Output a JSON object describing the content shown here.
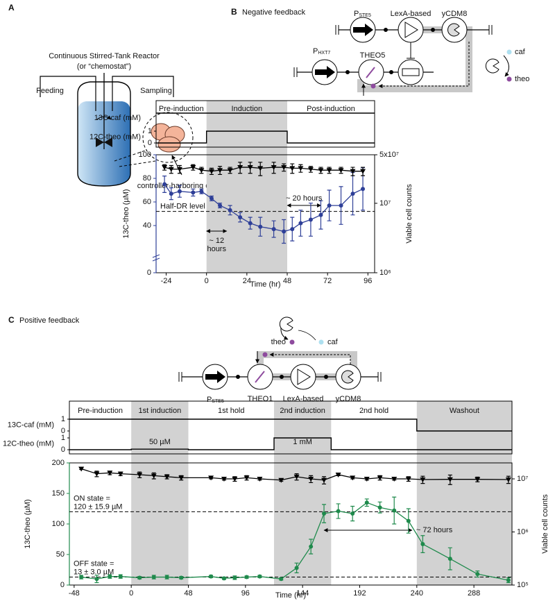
{
  "panel_a": {
    "label": "A",
    "title": "Continuous Stirred-Tank Reactor",
    "subtitle": "(or “chemostat”)",
    "feeding": "Feeding",
    "sampling": "Sampling",
    "cells": "controller-harboring cells"
  },
  "circuit_b": {
    "promoter_top": {
      "main": "P",
      "sub": "STE5"
    },
    "activator": "LexA-based",
    "degrader": "yCDM8",
    "promoter_bottom": {
      "main": "P",
      "sub": "HXT7"
    },
    "sensor": "THEO5",
    "caf": "caf",
    "theo": "theo"
  },
  "circuit_c": {
    "promoter": {
      "main": "P",
      "sub": "STE5"
    },
    "sensor": "THEO1",
    "activator": "LexA-based",
    "degrader": "yCDM8",
    "caf": "caf",
    "theo": "theo"
  },
  "chart_data": [
    {
      "type": "line",
      "panel_label": "B",
      "panel_title": "Negative feedback",
      "x_label": "Time (hr)",
      "y_label": "13C-theo (µM)",
      "y2_label": "Viable cell counts",
      "xlim": [
        -30,
        100
      ],
      "xticks": [
        -24,
        0,
        24,
        48,
        72,
        96
      ],
      "ylim": [
        0,
        100
      ],
      "yticks": [
        0,
        40,
        60,
        80,
        100
      ],
      "y_axis_break": true,
      "y2lim": [
        1000000,
        50000000
      ],
      "y2_log": true,
      "y2ticks": [
        {
          "value": 1000000,
          "label": "10⁶"
        },
        {
          "value": 10000000,
          "label": "10⁷"
        },
        {
          "value": 50000000,
          "label": "5x10⁷"
        }
      ],
      "x": [
        -25,
        -21,
        -16,
        -8,
        -3,
        3,
        8,
        14,
        20,
        26,
        32,
        40,
        46,
        51,
        56,
        62,
        68,
        73,
        80,
        87,
        93
      ],
      "series": [
        {
          "color": "#2e3f98",
          "marker": "circle",
          "values": [
            75,
            67,
            69,
            68,
            69,
            63,
            57,
            53,
            47,
            42,
            39,
            37,
            35,
            37,
            42,
            45,
            49,
            57,
            57,
            67,
            71
          ],
          "errors": [
            7,
            5,
            5,
            3,
            2,
            2,
            2,
            4,
            4,
            5,
            8,
            7,
            10,
            10,
            11,
            14,
            12,
            13,
            16,
            18,
            18
          ]
        },
        {
          "color": "#000000",
          "marker": "triangle",
          "axis": "y2",
          "values": [
            33000000,
            31000000,
            31000000,
            33000000,
            30000000,
            29000000,
            30000000,
            30000000,
            33000000,
            33000000,
            32000000,
            33000000,
            33000000,
            32000000,
            32000000,
            31000000,
            30000000,
            30000000,
            30000000,
            29000000,
            29000000
          ],
          "errors": [
            3000000,
            4000000,
            4000000,
            3000000,
            3000000,
            3000000,
            4000000,
            3000000,
            6000000,
            6000000,
            7000000,
            6000000,
            4000000,
            5000000,
            4000000,
            3000000,
            3000000,
            3000000,
            3000000,
            4000000,
            4000000
          ]
        }
      ],
      "phases": [
        {
          "label": "Pre-induction",
          "start": -30,
          "end": 0,
          "shaded": false
        },
        {
          "label": "Induction",
          "start": 0,
          "end": 48,
          "shaded": true
        },
        {
          "label": "Post-induction",
          "start": 48,
          "end": 100,
          "shaded": false
        }
      ],
      "inputs": [
        {
          "label": "13C-caf (mM)",
          "ylim": [
            0,
            1
          ],
          "x": [
            -30,
            100
          ],
          "values": [
            1,
            1
          ]
        },
        {
          "label": "12C-theo (mM)",
          "ylim": [
            0,
            1
          ],
          "yticks": [
            0,
            1
          ],
          "x": [
            -30,
            0,
            0,
            48,
            48,
            100
          ],
          "values": [
            0,
            0,
            1,
            1,
            0,
            0
          ]
        }
      ],
      "input_annotations": [],
      "hlines": [
        {
          "value": 52,
          "label": [
            "Half-DR level"
          ]
        }
      ],
      "arrows": [
        {
          "start": 0,
          "end": 12,
          "label": [
            "~ 12",
            "hours"
          ]
        },
        {
          "start": 48,
          "end": 68,
          "label": [
            "~ 20 hours"
          ]
        }
      ]
    },
    {
      "type": "line",
      "panel_label": "C",
      "panel_title": "Positive feedback",
      "x_label": "Time (hr)",
      "y_label": "13C-theo (µM)",
      "y2_label": "Viable cell counts",
      "xlim": [
        -52,
        320
      ],
      "xticks": [
        -48,
        0,
        48,
        96,
        144,
        192,
        240,
        288
      ],
      "ylim": [
        0,
        200
      ],
      "yticks": [
        0,
        50,
        100,
        150,
        200
      ],
      "y2lim": [
        100000,
        20000000
      ],
      "y2_log": true,
      "y2ticks": [
        {
          "value": 100000,
          "label": "10⁵"
        },
        {
          "value": 1000000,
          "label": "10⁶"
        },
        {
          "value": 10000000,
          "label": "10⁷"
        }
      ],
      "x": [
        -42,
        -29,
        -18,
        -9,
        7,
        19,
        30,
        42,
        67,
        78,
        87,
        97,
        108,
        126,
        139,
        151,
        162,
        174,
        186,
        198,
        209,
        221,
        233,
        245,
        268,
        291,
        317
      ],
      "series": [
        {
          "color": "#1f8a4c",
          "marker": "circle",
          "values": [
            13,
            10,
            14,
            14,
            12,
            13,
            13,
            12,
            14,
            11,
            12,
            13,
            14,
            10,
            28,
            63,
            117,
            121,
            117,
            135,
            127,
            122,
            105,
            67,
            43,
            18,
            8
          ],
          "errors": [
            3,
            6,
            3,
            3,
            2,
            3,
            3,
            2,
            2,
            2,
            3,
            2,
            2,
            2,
            8,
            12,
            15,
            12,
            12,
            6,
            9,
            22,
            20,
            14,
            18,
            5,
            4
          ]
        },
        {
          "color": "#000000",
          "marker": "triangle",
          "axis": "y2",
          "values": [
            15500000,
            12500000,
            13000000,
            12500000,
            12000000,
            11500000,
            11000000,
            10500000,
            10500000,
            10000000,
            10000000,
            10500000,
            10000000,
            9500000,
            11000000,
            10000000,
            9500000,
            12000000,
            10500000,
            10000000,
            10500000,
            10000000,
            10000000,
            9700000,
            9800000,
            9800000,
            9700000
          ],
          "errors": [
            500000,
            1500000,
            1000000,
            1000000,
            1500000,
            1500000,
            1000000,
            1000000,
            500000,
            500000,
            1000000,
            1000000,
            500000,
            500000,
            1500000,
            1500000,
            1500000,
            500000,
            500000,
            500000,
            1000000,
            500000,
            1000000,
            1500000,
            2000000,
            1000000,
            1500000
          ]
        }
      ],
      "phases": [
        {
          "label": "Pre-induction",
          "start": -52,
          "end": 0,
          "shaded": false
        },
        {
          "label": "1st induction",
          "start": 0,
          "end": 48,
          "shaded": true
        },
        {
          "label": "1st hold",
          "start": 48,
          "end": 120,
          "shaded": false
        },
        {
          "label": "2nd induction",
          "start": 120,
          "end": 168,
          "shaded": true
        },
        {
          "label": "2nd hold",
          "start": 168,
          "end": 240,
          "shaded": false
        },
        {
          "label": "Washout",
          "start": 240,
          "end": 320,
          "shaded": true
        }
      ],
      "inputs": [
        {
          "label": "13C-caf (mM)",
          "ylim": [
            0,
            1
          ],
          "yticks": [
            0,
            1
          ],
          "x": [
            -52,
            240,
            240,
            320
          ],
          "values": [
            1,
            1,
            0,
            0
          ]
        },
        {
          "label": "12C-theo (mM)",
          "ylim": [
            0,
            1
          ],
          "yticks": [
            0,
            1
          ],
          "x": [
            -52,
            0,
            0,
            48,
            48,
            120,
            120,
            168,
            168,
            320
          ],
          "values": [
            0,
            0,
            0.05,
            0.05,
            0,
            0,
            1,
            1,
            0,
            0
          ]
        }
      ],
      "input_annotations": [
        {
          "x": 24,
          "label": "50 µM"
        },
        {
          "x": 144,
          "label": "1 mM"
        }
      ],
      "hlines": [
        {
          "value": 120,
          "label": [
            "ON state =",
            "120 ± 15.9 µM"
          ]
        },
        {
          "value": 13,
          "label": [
            "OFF state =",
            "13 ± 3.0 µM"
          ]
        }
      ],
      "arrows": [
        {
          "start": 162,
          "end": 236,
          "label": [
            "~ 72 hours"
          ]
        }
      ]
    }
  ]
}
